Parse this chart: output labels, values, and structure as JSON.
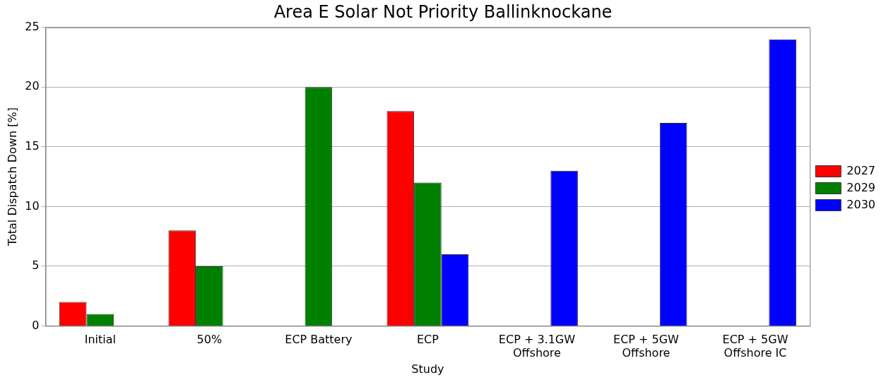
{
  "chart_data": {
    "type": "bar",
    "title": "Area E Solar Not Priority Ballinknockane",
    "xlabel": "Study",
    "ylabel": "Total Dispatch Down [%]",
    "categories": [
      "Initial",
      "50%",
      "ECP Battery",
      "ECP",
      "ECP + 3.1GW\nOffshore",
      "ECP + 5GW\nOffshore",
      "ECP + 5GW\nOffshore IC"
    ],
    "series": [
      {
        "name": "2027",
        "color": "#ff0000",
        "values": [
          2,
          8,
          null,
          18,
          null,
          null,
          null
        ]
      },
      {
        "name": "2029",
        "color": "#008000",
        "values": [
          1,
          5,
          20,
          12,
          null,
          null,
          null
        ]
      },
      {
        "name": "2030",
        "color": "#0000ff",
        "values": [
          null,
          null,
          null,
          6,
          13,
          17,
          24
        ]
      }
    ],
    "ylim": [
      0,
      25
    ],
    "yticks": [
      0,
      5,
      10,
      15,
      20,
      25
    ],
    "grid": "y",
    "legend": "right"
  }
}
